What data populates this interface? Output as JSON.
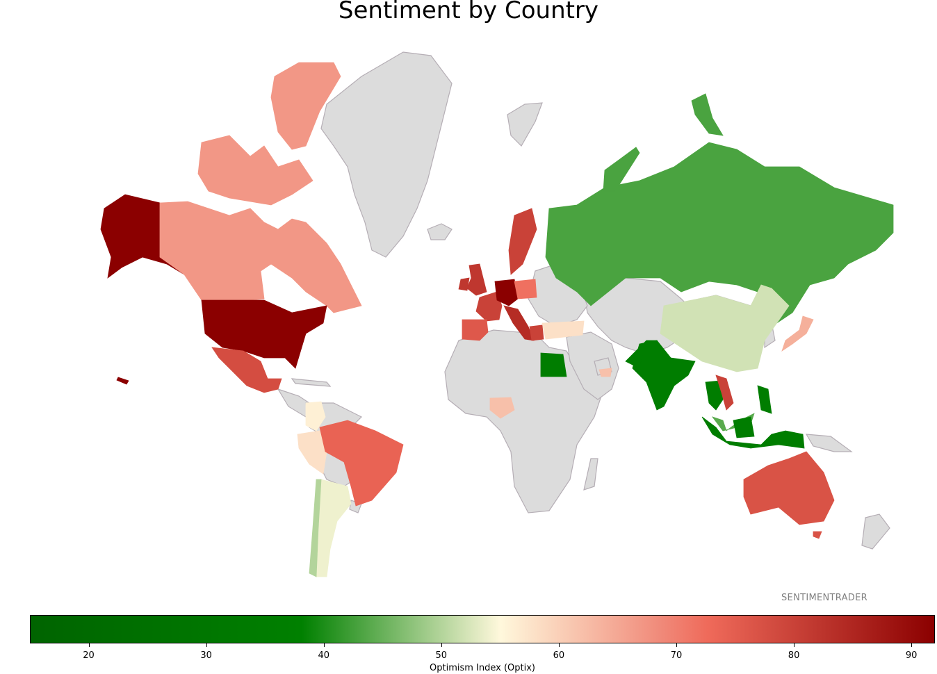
{
  "title": "Sentiment by Country",
  "watermark": "SENTIMENTRADER",
  "colorbar": {
    "label": "Optimism Index (Optix)",
    "min": 15,
    "max": 92,
    "ticks": [
      20,
      30,
      40,
      50,
      60,
      70,
      80,
      90
    ],
    "colors": {
      "deep_green": "#006400",
      "green": "#008000",
      "light": "#fff8dc",
      "salmon": "#ef6a5a",
      "dark_red": "#8b0000"
    }
  },
  "no_data_color": "#dcdcdc",
  "countries": [
    {
      "name": "United States",
      "optix": 92
    },
    {
      "name": "Alaska",
      "optix": 92
    },
    {
      "name": "Canada",
      "optix": 67
    },
    {
      "name": "Mexico",
      "optix": 78
    },
    {
      "name": "Brazil",
      "optix": 74
    },
    {
      "name": "Peru",
      "optix": 58
    },
    {
      "name": "Colombia",
      "optix": 56
    },
    {
      "name": "Argentina",
      "optix": 54
    },
    {
      "name": "Chile",
      "optix": 50
    },
    {
      "name": "United Kingdom",
      "optix": 82
    },
    {
      "name": "Spain",
      "optix": 76
    },
    {
      "name": "France",
      "optix": 80
    },
    {
      "name": "Germany",
      "optix": 92
    },
    {
      "name": "Italy",
      "optix": 84
    },
    {
      "name": "Poland",
      "optix": 72
    },
    {
      "name": "Sweden",
      "optix": 80
    },
    {
      "name": "Norway",
      "optix": 80
    },
    {
      "name": "Greece",
      "optix": 80
    },
    {
      "name": "Turkey",
      "optix": 58
    },
    {
      "name": "Russia",
      "optix": 43
    },
    {
      "name": "China",
      "optix": 52
    },
    {
      "name": "Japan",
      "optix": 64
    },
    {
      "name": "India",
      "optix": 36
    },
    {
      "name": "Pakistan",
      "optix": 36
    },
    {
      "name": "Egypt",
      "optix": 36
    },
    {
      "name": "Nigeria",
      "optix": 62
    },
    {
      "name": "Thailand",
      "optix": 36
    },
    {
      "name": "Vietnam",
      "optix": 80
    },
    {
      "name": "Indonesia",
      "optix": 36
    },
    {
      "name": "Malaysia",
      "optix": 44
    },
    {
      "name": "Philippines",
      "optix": 36
    },
    {
      "name": "Australia",
      "optix": 77
    },
    {
      "name": "UAE",
      "optix": 62
    }
  ]
}
